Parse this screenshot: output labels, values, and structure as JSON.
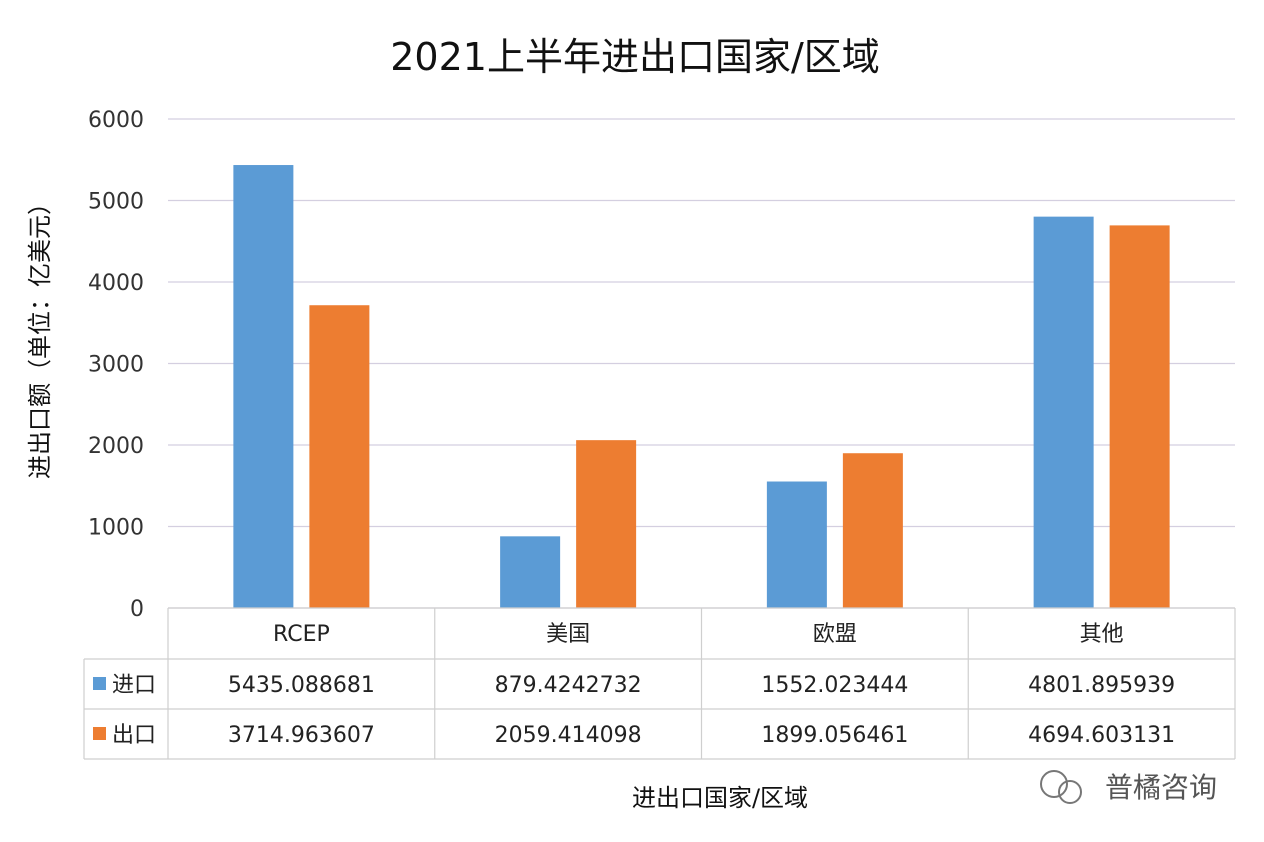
{
  "chart_data": {
    "type": "bar",
    "title": "2021上半年进出口国家/区域",
    "xlabel": "进出口国家/区域",
    "ylabel": "进出口额（单位：亿美元）",
    "ylim": [
      0,
      6000
    ],
    "yticks": [
      "0",
      "1000",
      "2000",
      "3000",
      "4000",
      "5000",
      "6000"
    ],
    "categories": [
      "RCEP",
      "美国",
      "欧盟",
      "其他"
    ],
    "grid": true,
    "legend": "data-table-left",
    "series": [
      {
        "name": "进口",
        "color": "#5b9bd5",
        "values": [
          5435.088681,
          879.4242732,
          1552.023444,
          4801.895939
        ],
        "labels": [
          "5435.088681",
          "879.4242732",
          "1552.023444",
          "4801.895939"
        ]
      },
      {
        "name": "出口",
        "color": "#ed7d31",
        "values": [
          3714.963607,
          2059.414098,
          1899.056461,
          4694.603131
        ],
        "labels": [
          "3714.963607",
          "2059.414098",
          "1899.056461",
          "4694.603131"
        ]
      }
    ]
  },
  "watermark": {
    "text": "普橘咨询",
    "icon": "wechat-icon"
  }
}
